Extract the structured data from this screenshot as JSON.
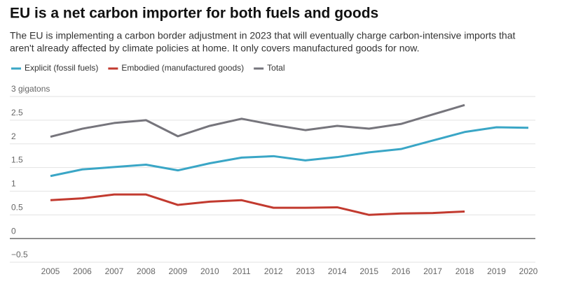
{
  "chart_data": {
    "type": "line",
    "title": "EU is a net carbon importer for both fuels and goods",
    "subtitle": [
      "The EU is implementing a carbon border adjustment in 2023 that will eventually charge carbon-intensive imports that",
      "aren't already affected by climate policies at home. It only covers manufactured goods for now."
    ],
    "categories": [
      "2005",
      "2006",
      "2007",
      "2008",
      "2009",
      "2010",
      "2011",
      "2012",
      "2013",
      "2014",
      "2015",
      "2016",
      "2017",
      "2018",
      "2019",
      "2020"
    ],
    "series": [
      {
        "name": "Explicit (fossil fuels)",
        "color": "#3aa6c6",
        "values": [
          1.32,
          1.46,
          1.51,
          1.56,
          1.44,
          1.59,
          1.71,
          1.74,
          1.65,
          1.72,
          1.82,
          1.89,
          2.07,
          2.25,
          2.35,
          2.34
        ]
      },
      {
        "name": "Embodied (manufactured goods)",
        "color": "#c23a2f",
        "values": [
          0.81,
          0.85,
          0.93,
          0.93,
          0.71,
          0.78,
          0.81,
          0.65,
          0.65,
          0.66,
          0.5,
          0.53,
          0.54,
          0.57,
          null,
          null
        ]
      },
      {
        "name": "Total",
        "color": "#76757c",
        "values": [
          2.15,
          2.32,
          2.44,
          2.5,
          2.16,
          2.38,
          2.53,
          2.4,
          2.29,
          2.38,
          2.32,
          2.42,
          2.62,
          2.82,
          null,
          null
        ]
      }
    ],
    "ylim": [
      -0.5,
      3
    ],
    "yticks": [
      {
        "value": -0.5,
        "label": "−0.5"
      },
      0,
      0.5,
      1,
      1.5,
      2,
      2.5,
      {
        "value": 3,
        "label": "3 gigatons"
      }
    ],
    "grid": true
  }
}
